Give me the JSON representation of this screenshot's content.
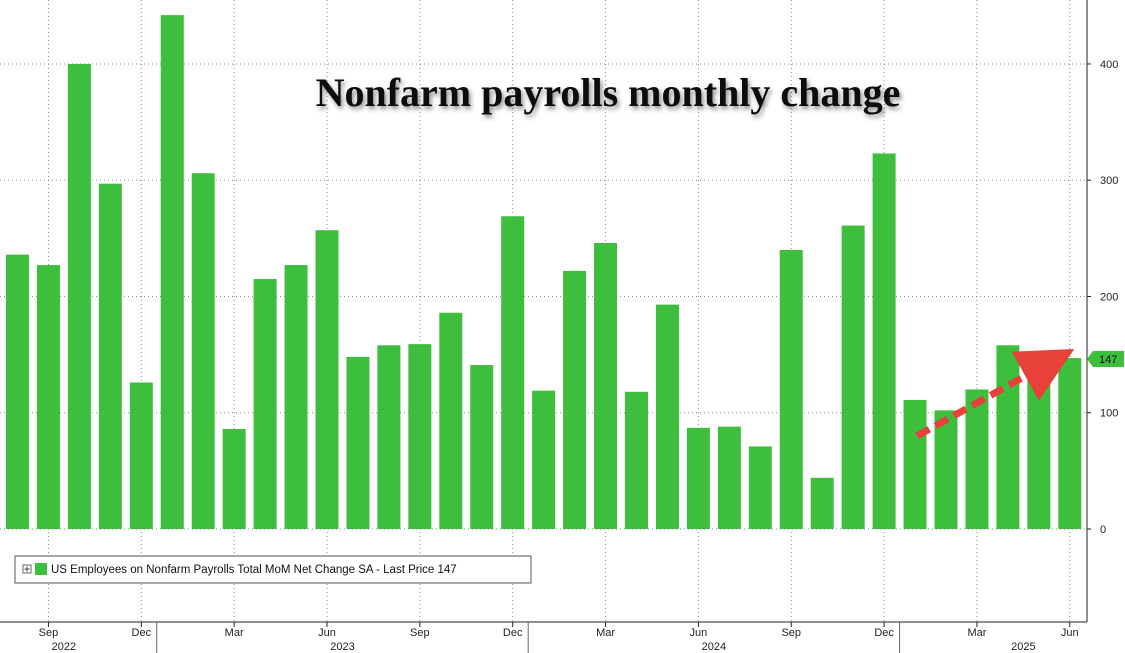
{
  "chart_data": {
    "type": "bar",
    "title": "Nonfarm payrolls monthly change",
    "categories": [
      "2022-08",
      "2022-09",
      "2022-10",
      "2022-11",
      "2022-12",
      "2023-01",
      "2023-02",
      "2023-03",
      "2023-04",
      "2023-05",
      "2023-06",
      "2023-07",
      "2023-08",
      "2023-09",
      "2023-10",
      "2023-11",
      "2023-12",
      "2024-01",
      "2024-02",
      "2024-03",
      "2024-04",
      "2024-05",
      "2024-06",
      "2024-07",
      "2024-08",
      "2024-09",
      "2024-10",
      "2024-11",
      "2024-12",
      "2025-01",
      "2025-02",
      "2025-03",
      "2025-04",
      "2025-05",
      "2025-06"
    ],
    "values": [
      236,
      227,
      400,
      297,
      126,
      442,
      306,
      86,
      215,
      227,
      257,
      148,
      158,
      159,
      186,
      141,
      269,
      119,
      222,
      246,
      118,
      193,
      87,
      88,
      71,
      240,
      44,
      261,
      323,
      111,
      102,
      120,
      158,
      144,
      147
    ],
    "series": [
      {
        "name": "US Employees on Nonfarm Payrolls Total MoM Net Change SA - Last Price 147",
        "color": "#3dbe3d"
      }
    ],
    "ylim": [
      -80,
      455
    ],
    "yticks": [
      0,
      100,
      200,
      300,
      400
    ],
    "ytick_labels": [
      "0",
      "100",
      "200",
      "300",
      "400"
    ],
    "xtick_labels": [
      {
        "month_index": 1,
        "label": "Sep"
      },
      {
        "month_index": 4,
        "label": "Dec"
      },
      {
        "month_index": 7,
        "label": "Mar"
      },
      {
        "month_index": 10,
        "label": "Jun"
      },
      {
        "month_index": 13,
        "label": "Sep"
      },
      {
        "month_index": 16,
        "label": "Dec"
      },
      {
        "month_index": 19,
        "label": "Mar"
      },
      {
        "month_index": 22,
        "label": "Jun"
      },
      {
        "month_index": 25,
        "label": "Sep"
      },
      {
        "month_index": 28,
        "label": "Dec"
      },
      {
        "month_index": 31,
        "label": "Mar"
      },
      {
        "month_index": 34,
        "label": "Jun"
      }
    ],
    "year_labels": [
      {
        "month_index": 1.5,
        "label": "2022"
      },
      {
        "month_index": 10.5,
        "label": "2023"
      },
      {
        "month_index": 22.5,
        "label": "2024"
      },
      {
        "month_index": 32.5,
        "label": "2025"
      }
    ],
    "last_value_label": "147",
    "grid": true,
    "axis_position": "right",
    "legend_position": "bottom-left",
    "annotation": {
      "type": "arrow",
      "color": "#e8413a",
      "style": "dashed",
      "from_month_index": 29,
      "from_value": 80,
      "to_month_index": 34,
      "to_value": 150
    },
    "colors": {
      "bar": "#3dbe3d",
      "bar_edge": "#2fa02f",
      "arrow": "#e8413a",
      "last_value_badge": "#3dbe3d"
    }
  }
}
